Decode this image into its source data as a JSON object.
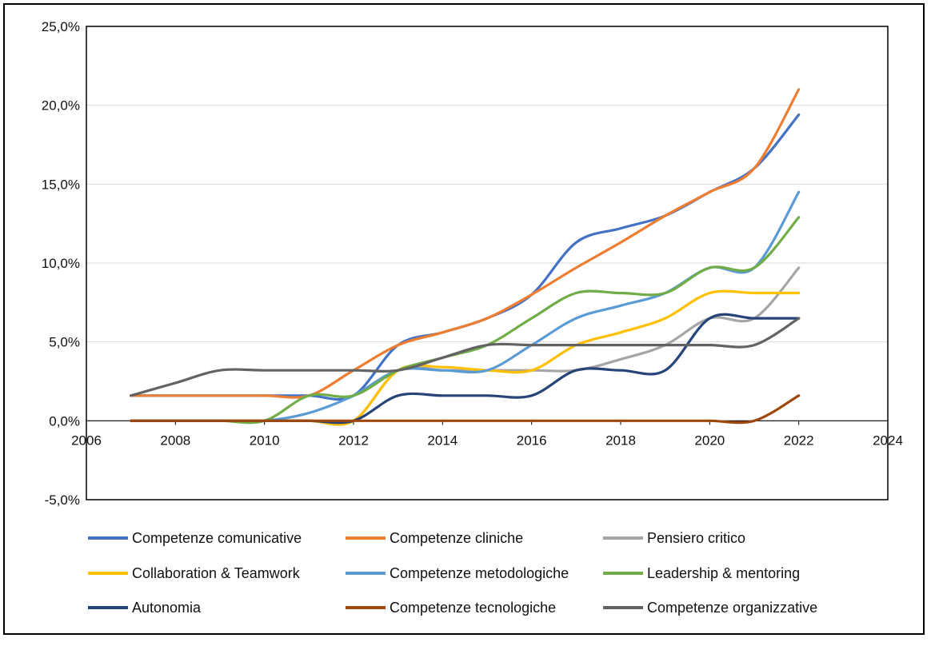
{
  "chart_data": {
    "type": "line",
    "title": "",
    "xlabel": "",
    "ylabel": "",
    "xlim": [
      2006,
      2024
    ],
    "ylim": [
      -5,
      25
    ],
    "x_ticks": [
      2006,
      2008,
      2010,
      2012,
      2014,
      2016,
      2018,
      2020,
      2022,
      2024
    ],
    "x_tick_labels": [
      "2006",
      "2008",
      "2010",
      "2012",
      "2014",
      "2016",
      "2018",
      "2020",
      "2022",
      "2024"
    ],
    "y_ticks": [
      -5,
      0,
      5,
      10,
      15,
      20,
      25
    ],
    "y_tick_labels": [
      "-5,0%",
      "0,0%",
      "5,0%",
      "10,0%",
      "15,0%",
      "20,0%",
      "25,0%"
    ],
    "grid": "horizontal",
    "legend_position": "bottom",
    "x": [
      2007,
      2008,
      2009,
      2010,
      2011,
      2012,
      2013,
      2014,
      2015,
      2016,
      2017,
      2018,
      2019,
      2020,
      2021,
      2022
    ],
    "series": [
      {
        "name": "Competenze comunicative",
        "color": "#4472C4",
        "values": [
          1.6,
          1.6,
          1.6,
          1.6,
          1.6,
          1.6,
          4.8,
          5.6,
          6.5,
          8.0,
          11.3,
          12.2,
          13.0,
          14.5,
          16.0,
          19.4
        ]
      },
      {
        "name": "Competenze cliniche",
        "color": "#ED7D31",
        "values": [
          1.6,
          1.6,
          1.6,
          1.6,
          1.6,
          3.2,
          4.8,
          5.6,
          6.5,
          8.0,
          9.7,
          11.3,
          13.0,
          14.5,
          16.0,
          21.0
        ]
      },
      {
        "name": "Pensiero critico",
        "color": "#A5A5A5",
        "values": [
          0,
          0,
          0,
          0,
          0,
          0,
          3.2,
          3.2,
          3.2,
          3.2,
          3.2,
          3.9,
          4.8,
          6.5,
          6.5,
          9.7
        ]
      },
      {
        "name": "Collaboration & Teamwork",
        "color": "#FFC000",
        "values": [
          0,
          0,
          0,
          0,
          0,
          0,
          3.2,
          3.4,
          3.2,
          3.2,
          4.8,
          5.6,
          6.5,
          8.1,
          8.1,
          8.1
        ]
      },
      {
        "name": "Competenze metodologiche",
        "color": "#5B9BD5",
        "values": [
          0,
          0,
          0,
          0,
          0.5,
          1.6,
          3.2,
          3.2,
          3.2,
          4.8,
          6.5,
          7.3,
          8.1,
          9.7,
          9.7,
          14.5
        ]
      },
      {
        "name": "Leadership & mentoring",
        "color": "#70AD47",
        "values": [
          0,
          0,
          0,
          0,
          1.6,
          1.6,
          3.2,
          4.0,
          4.8,
          6.5,
          8.1,
          8.1,
          8.1,
          9.7,
          9.7,
          12.9
        ]
      },
      {
        "name": "Autonomia",
        "color": "#264478",
        "values": [
          0,
          0,
          0,
          0,
          0,
          0,
          1.6,
          1.6,
          1.6,
          1.6,
          3.2,
          3.2,
          3.2,
          6.5,
          6.5,
          6.5
        ]
      },
      {
        "name": "Competenze tecnologiche",
        "color": "#9E480E",
        "values": [
          0,
          0,
          0,
          0,
          0,
          0,
          0,
          0,
          0,
          0,
          0,
          0,
          0,
          0,
          0,
          1.6
        ]
      },
      {
        "name": "Competenze organizzative",
        "color": "#636363",
        "values": [
          1.6,
          2.4,
          3.2,
          3.2,
          3.2,
          3.2,
          3.2,
          4.0,
          4.8,
          4.8,
          4.8,
          4.8,
          4.8,
          4.8,
          4.8,
          6.5
        ]
      }
    ]
  }
}
